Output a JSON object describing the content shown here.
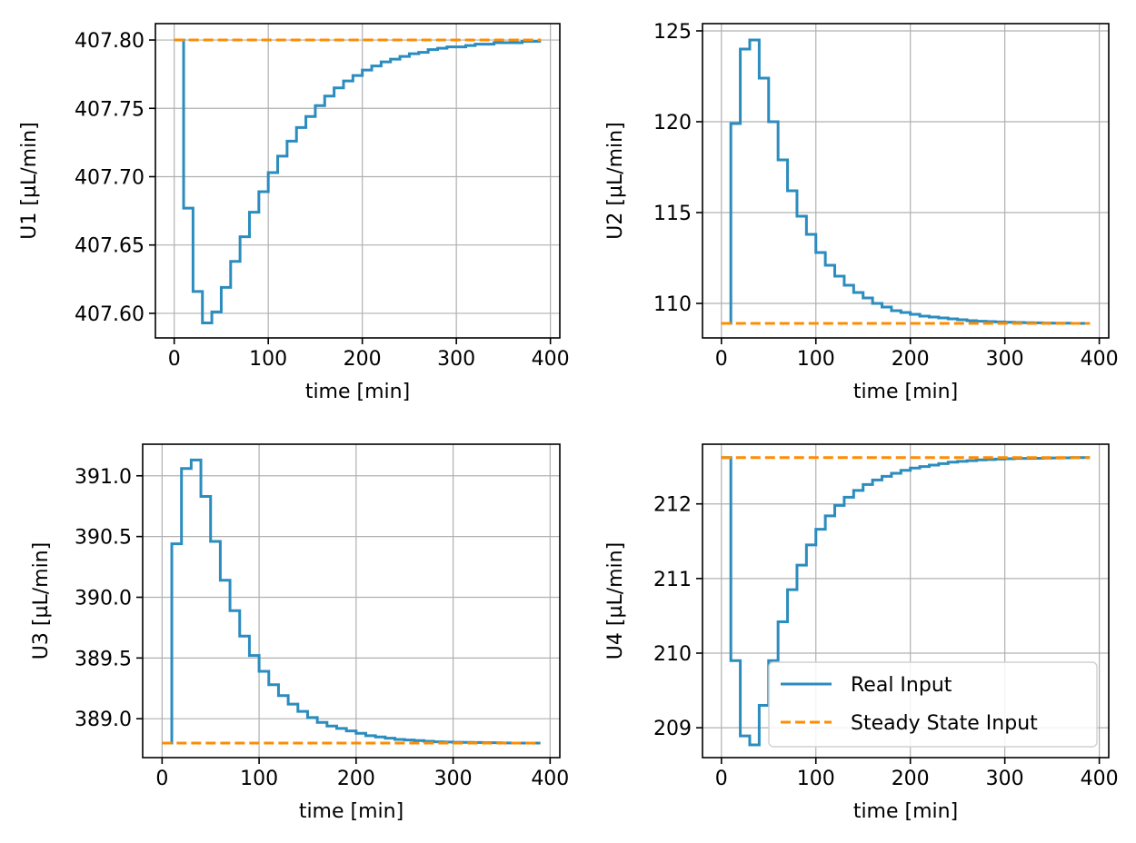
{
  "colors": {
    "real_input": "#2b8cbe",
    "steady_state": "#ff8c00",
    "grid": "#b0b0b0",
    "axes": "#000000"
  },
  "legend": {
    "placement": "lower-right",
    "entries": [
      "Real Input",
      "Steady State Input"
    ]
  },
  "chart_data": [
    {
      "type": "line",
      "step": true,
      "xlabel": "time [min]",
      "ylabel": "U1 [µL/min]",
      "xlim": [
        -20,
        410
      ],
      "ylim": [
        407.582,
        407.812
      ],
      "xticks": [
        0,
        100,
        200,
        300,
        400
      ],
      "xtick_labels": [
        "0",
        "100",
        "200",
        "300",
        "400"
      ],
      "yticks": [
        407.6,
        407.65,
        407.7,
        407.75,
        407.8
      ],
      "ytick_labels": [
        "407.60",
        "407.65",
        "407.70",
        "407.75",
        "407.80"
      ],
      "grid": true,
      "series": [
        {
          "name": "Real Input",
          "style": "solid",
          "x": [
            0,
            10,
            20,
            30,
            40,
            50,
            60,
            70,
            80,
            90,
            100,
            110,
            120,
            130,
            140,
            150,
            160,
            170,
            180,
            190,
            200,
            210,
            220,
            230,
            240,
            250,
            260,
            270,
            280,
            290,
            300,
            310,
            320,
            330,
            340,
            350,
            360,
            370,
            380,
            390
          ],
          "y": [
            407.8,
            407.677,
            407.616,
            407.593,
            407.601,
            407.619,
            407.638,
            407.656,
            407.674,
            407.689,
            407.703,
            407.715,
            407.726,
            407.736,
            407.744,
            407.752,
            407.759,
            407.765,
            407.77,
            407.774,
            407.778,
            407.781,
            407.784,
            407.786,
            407.788,
            407.79,
            407.791,
            407.793,
            407.794,
            407.795,
            407.795,
            407.796,
            407.797,
            407.797,
            407.798,
            407.798,
            407.798,
            407.799,
            407.799,
            407.799
          ]
        },
        {
          "name": "Steady State Input",
          "style": "dashed",
          "x": [
            0,
            390
          ],
          "y": [
            407.8,
            407.8
          ]
        }
      ]
    },
    {
      "type": "line",
      "step": true,
      "xlabel": "time [min]",
      "ylabel": "U2 [µL/min]",
      "xlim": [
        -20,
        410
      ],
      "ylim": [
        108.1,
        125.4
      ],
      "xticks": [
        0,
        100,
        200,
        300,
        400
      ],
      "xtick_labels": [
        "0",
        "100",
        "200",
        "300",
        "400"
      ],
      "yticks": [
        110,
        115,
        120,
        125
      ],
      "ytick_labels": [
        "110",
        "115",
        "120",
        "125"
      ],
      "grid": true,
      "series": [
        {
          "name": "Real Input",
          "style": "solid",
          "x": [
            0,
            10,
            20,
            30,
            40,
            50,
            60,
            70,
            80,
            90,
            100,
            110,
            120,
            130,
            140,
            150,
            160,
            170,
            180,
            190,
            200,
            210,
            220,
            230,
            240,
            250,
            260,
            270,
            280,
            290,
            300,
            310,
            320,
            330,
            340,
            350,
            360,
            370,
            380,
            390
          ],
          "y": [
            108.9,
            119.9,
            124.0,
            124.5,
            122.4,
            120.0,
            117.9,
            116.2,
            114.8,
            113.8,
            112.8,
            112.1,
            111.5,
            111.0,
            110.6,
            110.3,
            110.0,
            109.8,
            109.6,
            109.5,
            109.4,
            109.3,
            109.25,
            109.2,
            109.15,
            109.1,
            109.05,
            109.02,
            109.0,
            108.98,
            108.96,
            108.95,
            108.94,
            108.93,
            108.92,
            108.91,
            108.91,
            108.9,
            108.9,
            108.9
          ]
        },
        {
          "name": "Steady State Input",
          "style": "dashed",
          "x": [
            0,
            390
          ],
          "y": [
            108.9,
            108.9
          ]
        }
      ]
    },
    {
      "type": "line",
      "step": true,
      "xlabel": "time [min]",
      "ylabel": "U3 [µL/min]",
      "xlim": [
        -20,
        410
      ],
      "ylim": [
        388.68,
        391.26
      ],
      "xticks": [
        0,
        100,
        200,
        300,
        400
      ],
      "xtick_labels": [
        "0",
        "100",
        "200",
        "300",
        "400"
      ],
      "yticks": [
        389.0,
        389.5,
        390.0,
        390.5,
        391.0
      ],
      "ytick_labels": [
        "389.0",
        "389.5",
        "390.0",
        "390.5",
        "391.0"
      ],
      "grid": true,
      "series": [
        {
          "name": "Real Input",
          "style": "solid",
          "x": [
            0,
            10,
            20,
            30,
            40,
            50,
            60,
            70,
            80,
            90,
            100,
            110,
            120,
            130,
            140,
            150,
            160,
            170,
            180,
            190,
            200,
            210,
            220,
            230,
            240,
            250,
            260,
            270,
            280,
            290,
            300,
            310,
            320,
            330,
            340,
            350,
            360,
            370,
            380,
            390
          ],
          "y": [
            388.8,
            390.44,
            391.06,
            391.13,
            390.83,
            390.46,
            390.14,
            389.89,
            389.68,
            389.52,
            389.39,
            389.28,
            389.19,
            389.12,
            389.06,
            389.01,
            388.97,
            388.94,
            388.92,
            388.9,
            388.88,
            388.86,
            388.85,
            388.84,
            388.83,
            388.825,
            388.82,
            388.815,
            388.81,
            388.808,
            388.806,
            388.805,
            388.804,
            388.803,
            388.802,
            388.801,
            388.8,
            388.8,
            388.8,
            388.8
          ]
        },
        {
          "name": "Steady State Input",
          "style": "dashed",
          "x": [
            0,
            390
          ],
          "y": [
            388.8,
            388.8
          ]
        }
      ]
    },
    {
      "type": "line",
      "step": true,
      "xlabel": "time [min]",
      "ylabel": "U4 [µL/min]",
      "xlim": [
        -20,
        410
      ],
      "ylim": [
        208.6,
        212.8
      ],
      "xticks": [
        0,
        100,
        200,
        300,
        400
      ],
      "xtick_labels": [
        "0",
        "100",
        "200",
        "300",
        "400"
      ],
      "yticks": [
        209,
        210,
        211,
        212
      ],
      "ytick_labels": [
        "209",
        "210",
        "211",
        "212"
      ],
      "grid": true,
      "series": [
        {
          "name": "Real Input",
          "style": "solid",
          "x": [
            0,
            10,
            20,
            30,
            40,
            50,
            60,
            70,
            80,
            90,
            100,
            110,
            120,
            130,
            140,
            150,
            160,
            170,
            180,
            190,
            200,
            210,
            220,
            230,
            240,
            250,
            260,
            270,
            280,
            290,
            300,
            310,
            320,
            330,
            340,
            350,
            360,
            370,
            380,
            390
          ],
          "y": [
            212.62,
            209.9,
            208.89,
            208.77,
            209.3,
            209.9,
            210.42,
            210.85,
            211.18,
            211.45,
            211.66,
            211.84,
            211.98,
            212.09,
            212.18,
            212.26,
            212.32,
            212.37,
            212.41,
            212.45,
            212.48,
            212.5,
            212.52,
            212.54,
            212.56,
            212.57,
            212.58,
            212.59,
            212.595,
            212.6,
            212.605,
            212.61,
            212.61,
            212.612,
            212.614,
            212.616,
            212.618,
            212.62,
            212.62,
            212.62
          ]
        },
        {
          "name": "Steady State Input",
          "style": "dashed",
          "x": [
            0,
            390
          ],
          "y": [
            212.62,
            212.62
          ]
        }
      ]
    }
  ]
}
